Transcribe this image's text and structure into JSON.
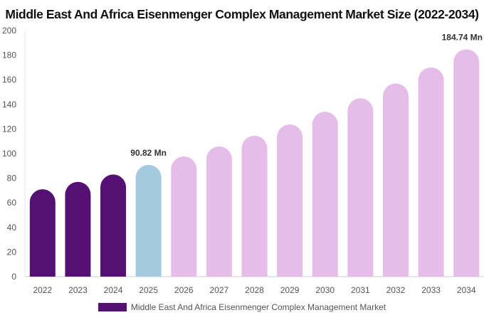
{
  "chart_data": {
    "type": "bar",
    "title": "Middle East And Africa Eisenmenger Complex Management Market Size (2022-2034)",
    "categories": [
      "2022",
      "2023",
      "2024",
      "2025",
      "2026",
      "2027",
      "2028",
      "2029",
      "2030",
      "2031",
      "2032",
      "2033",
      "2034"
    ],
    "series": [
      {
        "name": "Middle East And Africa Eisenmenger Complex Management Market",
        "values": [
          71,
          77,
          83,
          90.82,
          97.7,
          105.8,
          114.5,
          123.7,
          134,
          145,
          157,
          170,
          184.74
        ]
      }
    ],
    "data_labels": [
      {
        "category": "2025",
        "text": "90.82 Mn"
      },
      {
        "category": "2034",
        "text": "184.74 Mn"
      }
    ],
    "yticks": [
      0,
      20,
      40,
      60,
      80,
      100,
      120,
      140,
      160,
      180,
      200
    ],
    "ylim": [
      0,
      200
    ],
    "grid": false,
    "legend_position": "bottom",
    "colors": {
      "historical": "#541073",
      "current": "#a3cadf",
      "forecast": "#e6bde9"
    }
  }
}
